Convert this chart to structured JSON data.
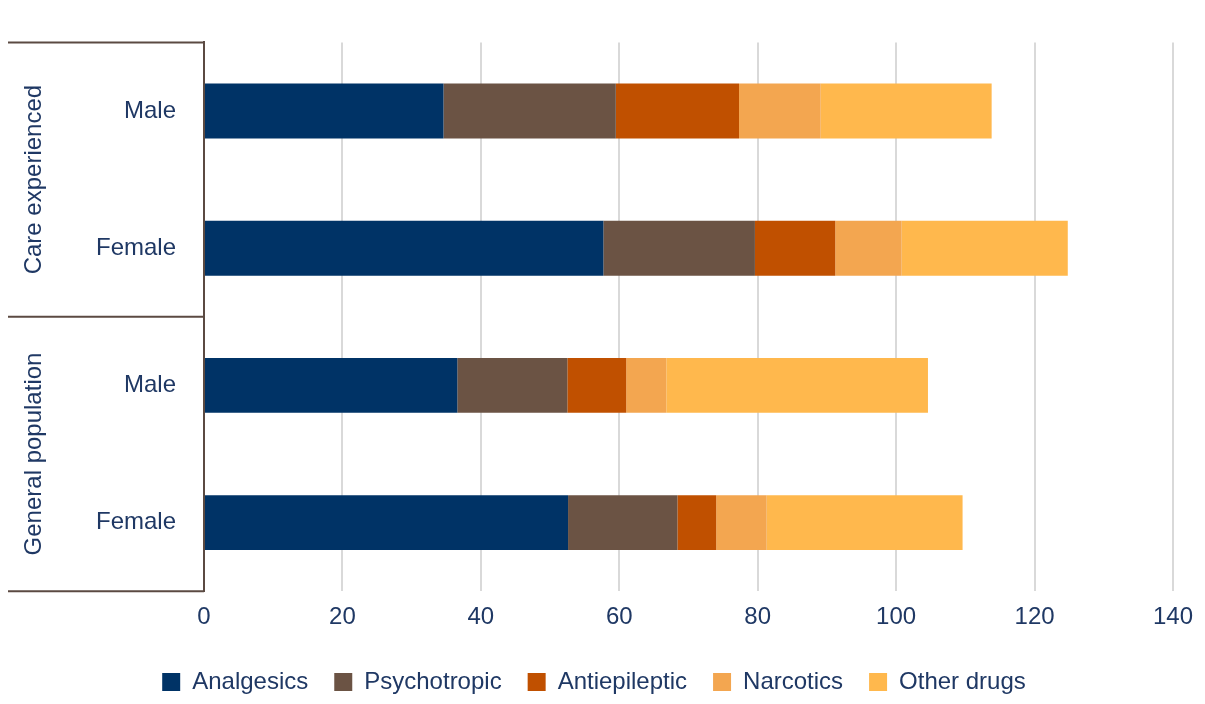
{
  "chart_data": {
    "type": "bar",
    "orientation": "horizontal",
    "stacked": true,
    "categories": [
      "Male",
      "Female",
      "Male",
      "Female"
    ],
    "series": [
      {
        "name": "Analgesics",
        "color": "#003366",
        "values": [
          34.6,
          57.7,
          36.6,
          52.6
        ]
      },
      {
        "name": "Psychotropic",
        "color": "#6b5344",
        "values": [
          24.9,
          21.9,
          15.9,
          15.8
        ]
      },
      {
        "name": "Antiepileptic",
        "color": "#c05000",
        "values": [
          17.8,
          11.6,
          8.5,
          5.6
        ]
      },
      {
        "name": "Narcotics",
        "color": "#f3a650",
        "values": [
          11.8,
          9.6,
          5.8,
          7.3
        ]
      },
      {
        "name": "Other drugs",
        "color": "#ffb84d",
        "values": [
          24.7,
          24.0,
          37.8,
          28.3
        ]
      }
    ],
    "xlim": [
      0,
      140
    ],
    "xticks": [
      0,
      20,
      40,
      60,
      80,
      100,
      120,
      140
    ],
    "grid": "x",
    "legend": "bottom",
    "annotations": [
      "Care experienced",
      "General population"
    ]
  }
}
